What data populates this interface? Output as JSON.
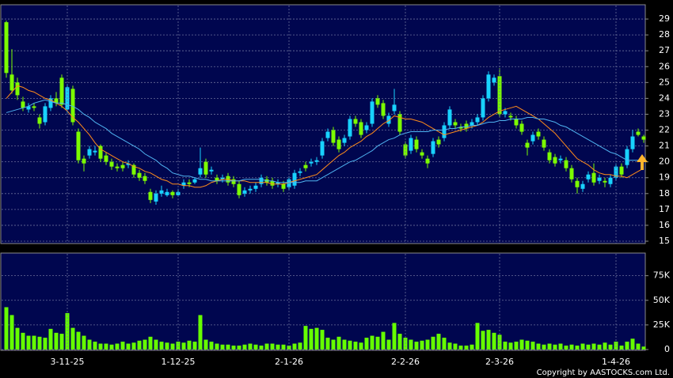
{
  "chart_data": [
    {
      "type": "candlestick",
      "up_color": "#18d2ff",
      "down_color": "#7cfc00",
      "ylim": [
        14.85,
        29.9
      ],
      "yticks": [
        15,
        16,
        17,
        18,
        19,
        20,
        21,
        22,
        23,
        24,
        25,
        26,
        27,
        28,
        29
      ],
      "grid": true,
      "open": [
        28.8,
        25.5,
        25.0,
        23.8,
        23.3,
        23.5,
        22.8,
        22.5,
        23.4,
        24.0,
        25.3,
        23.3,
        24.6,
        21.9,
        20.2,
        20.4,
        20.6,
        21.0,
        20.4,
        20.0,
        19.7,
        19.8,
        19.8,
        19.8,
        19.3,
        19.1,
        18.1,
        17.5,
        18.0,
        17.9,
        18.1,
        17.9,
        18.5,
        18.7,
        18.7,
        19.2,
        20.0,
        19.4,
        19.0,
        18.9,
        19.1,
        18.9,
        18.6,
        18.0,
        18.2,
        18.3,
        18.6,
        18.9,
        18.8,
        18.6,
        18.6,
        18.4,
        18.5,
        19.3,
        19.8,
        19.9,
        20.0,
        20.4,
        21.5,
        22.0,
        21.4,
        21.2,
        21.6,
        22.7,
        22.5,
        22.0,
        22.4,
        24.0,
        23.7,
        22.4,
        23.2,
        23.0,
        21.1,
        20.7,
        21.4,
        20.6,
        20.2,
        20.5,
        21.4,
        21.5,
        22.3,
        22.5,
        22.2,
        22.4,
        22.3,
        22.5,
        22.8,
        24.0,
        25.0,
        25.4,
        23.0,
        22.9,
        22.7,
        22.4,
        21.2,
        21.3,
        21.9,
        21.4,
        20.6,
        20.3,
        20.1,
        20.1,
        19.6,
        18.8,
        18.3,
        18.9,
        19.3,
        18.8,
        18.8,
        18.6,
        19.0,
        19.7,
        19.8,
        20.8,
        21.9,
        21.6
      ],
      "high": [
        28.9,
        27.1,
        25.3,
        24.1,
        23.7,
        23.7,
        23.0,
        23.7,
        24.2,
        24.4,
        25.5,
        24.9,
        24.8,
        22.1,
        20.4,
        21.0,
        21.0,
        21.1,
        20.6,
        20.2,
        19.9,
        20.0,
        20.1,
        19.9,
        19.5,
        19.3,
        18.3,
        18.2,
        18.5,
        18.3,
        18.2,
        18.3,
        18.9,
        18.9,
        19.0,
        20.9,
        20.2,
        19.7,
        19.2,
        19.2,
        19.3,
        19.1,
        18.8,
        18.4,
        18.5,
        18.7,
        19.2,
        19.1,
        19.0,
        18.9,
        18.8,
        19.1,
        19.5,
        19.6,
        20.0,
        20.2,
        20.3,
        21.5,
        22.1,
        22.2,
        21.6,
        21.7,
        22.9,
        22.9,
        22.7,
        22.5,
        24.0,
        24.2,
        23.9,
        23.1,
        24.6,
        23.2,
        21.3,
        21.7,
        21.6,
        20.8,
        20.4,
        21.5,
        21.6,
        22.5,
        23.5,
        22.7,
        22.4,
        22.6,
        22.7,
        23.0,
        24.2,
        25.7,
        25.5,
        25.9,
        23.4,
        23.1,
        22.9,
        22.6,
        21.4,
        21.9,
        22.1,
        21.6,
        20.8,
        20.5,
        20.4,
        20.3,
        19.8,
        19.0,
        18.8,
        19.4,
        19.9,
        19.2,
        19.0,
        19.2,
        19.9,
        19.9,
        21.0,
        22.0,
        22.1,
        21.7
      ],
      "low": [
        25.3,
        24.3,
        23.9,
        23.2,
        23.1,
        23.2,
        22.1,
        22.3,
        23.2,
        23.5,
        23.4,
        23.1,
        22.3,
        19.9,
        19.4,
        20.2,
        20.4,
        20.0,
        19.8,
        19.5,
        19.4,
        19.4,
        19.6,
        19.0,
        18.8,
        18.6,
        17.4,
        17.3,
        17.8,
        17.8,
        17.7,
        17.8,
        18.3,
        18.4,
        18.6,
        19.0,
        19.0,
        19.2,
        18.6,
        18.7,
        18.5,
        18.4,
        17.7,
        17.8,
        18.0,
        18.1,
        18.4,
        18.5,
        18.3,
        18.4,
        18.1,
        18.2,
        18.3,
        19.1,
        19.4,
        19.7,
        19.8,
        20.2,
        21.3,
        21.0,
        20.6,
        21.0,
        21.4,
        22.2,
        21.5,
        21.8,
        22.2,
        23.4,
        22.7,
        22.2,
        23.0,
        21.7,
        20.2,
        20.5,
        20.6,
        20.2,
        19.6,
        20.3,
        20.9,
        21.3,
        22.1,
        22.1,
        21.9,
        21.9,
        22.1,
        22.3,
        22.6,
        23.8,
        24.8,
        22.8,
        22.8,
        22.6,
        22.1,
        21.7,
        20.4,
        21.1,
        21.4,
        20.7,
        19.9,
        19.7,
        19.9,
        19.4,
        18.7,
        18.0,
        18.1,
        18.7,
        18.5,
        18.6,
        18.4,
        18.4,
        18.8,
        19.0,
        19.6,
        20.6,
        21.6,
        21.2
      ],
      "close": [
        25.6,
        24.5,
        24.2,
        23.4,
        23.5,
        23.4,
        22.4,
        23.5,
        24.0,
        23.7,
        23.6,
        24.7,
        22.5,
        20.1,
        19.9,
        20.8,
        20.7,
        20.2,
        20.0,
        19.7,
        19.6,
        19.6,
        19.9,
        19.2,
        19.0,
        18.8,
        17.6,
        18.0,
        18.2,
        18.1,
        17.9,
        18.1,
        18.7,
        18.6,
        18.9,
        19.6,
        19.2,
        19.5,
        18.8,
        19.0,
        18.7,
        18.6,
        17.9,
        18.2,
        18.3,
        18.5,
        19.0,
        18.7,
        18.5,
        18.7,
        18.3,
        18.9,
        19.3,
        19.4,
        19.6,
        20.0,
        20.1,
        21.3,
        21.9,
        21.2,
        20.8,
        21.5,
        22.7,
        22.4,
        21.7,
        22.3,
        23.8,
        23.6,
        22.9,
        22.9,
        23.6,
        21.9,
        20.4,
        21.5,
        20.8,
        20.4,
        19.9,
        21.3,
        21.1,
        22.3,
        23.3,
        22.3,
        22.1,
        22.1,
        22.5,
        22.8,
        24.0,
        25.5,
        25.3,
        23.0,
        23.2,
        22.8,
        22.3,
        21.9,
        20.9,
        21.7,
        21.6,
        20.9,
        20.1,
        19.9,
        20.2,
        19.6,
        18.9,
        18.4,
        18.6,
        19.2,
        18.7,
        19.0,
        18.7,
        19.0,
        19.7,
        19.2,
        20.8,
        21.6,
        21.7,
        21.4
      ],
      "lines": [
        {
          "color": "#ff8c1a",
          "values": [
            24.0,
            24.4,
            24.8,
            24.7,
            24.5,
            24.4,
            24.2,
            24.0,
            23.9,
            23.7,
            23.5,
            23.2,
            22.8,
            22.5,
            22.1,
            21.7,
            21.2,
            20.8,
            20.6,
            20.4,
            20.2,
            20.0,
            19.9,
            19.7,
            19.6,
            19.4,
            19.3,
            19.1,
            18.9,
            18.8,
            18.6,
            18.6,
            18.5,
            18.5,
            18.4,
            18.4,
            18.5,
            18.7,
            18.8,
            18.9,
            18.9,
            18.8,
            18.8,
            18.8,
            18.7,
            18.7,
            18.7,
            18.7,
            18.6,
            18.6,
            18.6,
            18.7,
            18.8,
            18.9,
            19.0,
            19.1,
            19.2,
            19.5,
            19.8,
            20.1,
            20.4,
            20.6,
            20.9,
            21.1,
            21.3,
            21.6,
            21.8,
            22.1,
            22.4,
            22.6,
            22.9,
            22.8,
            22.7,
            22.7,
            22.6,
            22.5,
            22.3,
            22.1,
            21.9,
            21.7,
            21.8,
            21.9,
            22.0,
            22.1,
            22.2,
            22.3,
            22.5,
            22.8,
            23.0,
            23.2,
            23.3,
            23.4,
            23.5,
            23.3,
            23.1,
            22.9,
            22.7,
            22.4,
            22.1,
            21.8,
            21.4,
            21.0,
            20.6,
            20.2,
            20.0,
            19.8,
            19.5,
            19.3,
            19.2,
            19.2,
            19.1,
            19.1,
            19.0,
            19.2,
            19.4,
            19.6
          ]
        },
        {
          "color": "#4fb3f0",
          "values": [
            23.1,
            23.2,
            23.3,
            23.4,
            23.5,
            23.7,
            23.8,
            23.9,
            23.8,
            23.7,
            23.7,
            23.6,
            23.5,
            23.3,
            23.0,
            22.8,
            22.5,
            22.3,
            22.1,
            21.8,
            21.6,
            21.4,
            21.2,
            21.0,
            20.8,
            20.5,
            20.3,
            20.1,
            19.8,
            19.6,
            19.3,
            19.2,
            19.1,
            19.1,
            19.0,
            18.9,
            18.9,
            18.8,
            18.8,
            18.8,
            18.8,
            18.8,
            18.8,
            18.9,
            18.9,
            18.9,
            18.9,
            18.8,
            18.8,
            18.7,
            18.7,
            18.7,
            18.7,
            18.7,
            18.8,
            18.8,
            18.8,
            19.0,
            19.2,
            19.4,
            19.6,
            19.8,
            20.0,
            20.1,
            20.3,
            20.5,
            20.7,
            21.0,
            21.2,
            21.4,
            21.5,
            21.7,
            21.8,
            21.9,
            21.9,
            21.9,
            21.9,
            22.0,
            22.0,
            22.0,
            22.1,
            22.1,
            22.2,
            22.2,
            22.3,
            22.3,
            22.4,
            22.5,
            22.5,
            22.6,
            22.6,
            22.7,
            22.7,
            22.7,
            22.8,
            22.8,
            22.7,
            22.7,
            22.6,
            22.5,
            22.3,
            22.2,
            22.0,
            21.8,
            21.6,
            21.4,
            21.2,
            21.0,
            20.8,
            20.6,
            20.5,
            20.3,
            20.1,
            20.1,
            20.1,
            20.1
          ]
        }
      ]
    },
    {
      "type": "bar",
      "color": "#66ff00",
      "ylim": [
        0,
        98000
      ],
      "yticks": [
        0,
        {
          "value": 25000,
          "label": "25K"
        },
        {
          "value": 50000,
          "label": "50K"
        },
        {
          "value": 75000,
          "label": "75K"
        }
      ],
      "grid": true,
      "categories": [
        null,
        null,
        null,
        null,
        null,
        null,
        null,
        null,
        null,
        null,
        null,
        "3-11-25",
        null,
        null,
        null,
        null,
        null,
        null,
        null,
        null,
        null,
        null,
        null,
        null,
        null,
        null,
        null,
        null,
        null,
        null,
        null,
        "1-12-25",
        null,
        null,
        null,
        null,
        null,
        null,
        null,
        null,
        null,
        null,
        null,
        null,
        null,
        null,
        null,
        null,
        null,
        null,
        null,
        "2-1-26",
        null,
        null,
        null,
        null,
        null,
        null,
        null,
        null,
        null,
        null,
        null,
        null,
        null,
        null,
        null,
        null,
        null,
        null,
        null,
        null,
        "2-2-26",
        null,
        null,
        null,
        null,
        null,
        null,
        null,
        null,
        null,
        null,
        null,
        null,
        null,
        null,
        null,
        null,
        "2-3-26",
        null,
        null,
        null,
        null,
        null,
        null,
        null,
        null,
        null,
        null,
        null,
        null,
        null,
        null,
        null,
        null,
        null,
        null,
        null,
        null,
        "1-4-26",
        null,
        null,
        null,
        null,
        null
      ],
      "values": [
        43000,
        35000,
        22000,
        17000,
        14000,
        14000,
        13000,
        12000,
        21000,
        17000,
        16000,
        37000,
        22000,
        18000,
        14000,
        10000,
        8000,
        6000,
        6000,
        5000,
        6000,
        8000,
        6000,
        7000,
        9000,
        10000,
        13000,
        10000,
        8000,
        7000,
        6000,
        8000,
        7000,
        9000,
        8000,
        35000,
        10000,
        8000,
        6000,
        5000,
        5000,
        4000,
        4000,
        5000,
        6000,
        5000,
        4000,
        6000,
        6000,
        5000,
        5000,
        4000,
        6000,
        7000,
        24000,
        21000,
        22000,
        20000,
        12000,
        10000,
        13000,
        10000,
        9000,
        8000,
        7000,
        12000,
        14000,
        13000,
        18000,
        10000,
        27000,
        16000,
        12000,
        10000,
        8000,
        9000,
        10000,
        13000,
        16000,
        12000,
        7000,
        6000,
        4000,
        4000,
        5000,
        27000,
        19000,
        20000,
        17000,
        15000,
        8000,
        7000,
        8000,
        10000,
        9000,
        8000,
        6000,
        5000,
        6000,
        5000,
        6000,
        4000,
        5000,
        4000,
        6000,
        5000,
        6000,
        5000,
        7000,
        5000,
        8000,
        4000,
        8000,
        11000,
        6000,
        3000
      ]
    }
  ],
  "footer": {
    "copyright": "Copyright by AASTOCKS.com Ltd."
  }
}
